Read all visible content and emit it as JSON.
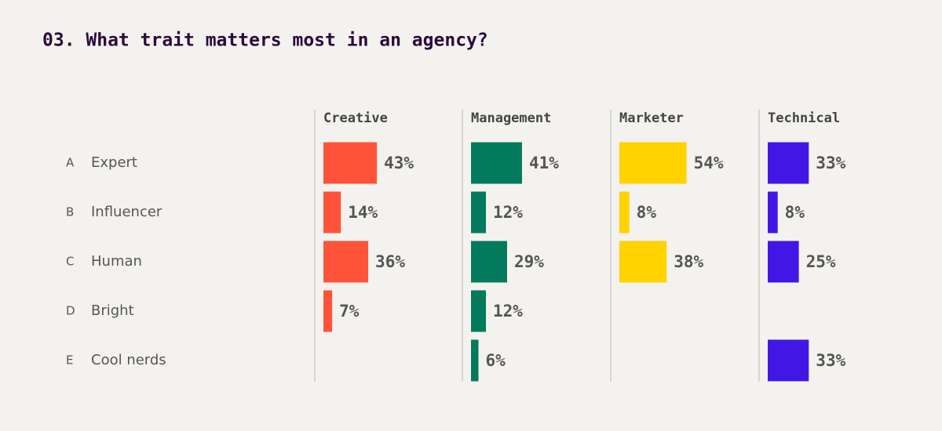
{
  "chart_data": {
    "type": "bar",
    "orientation": "horizontal",
    "title": "03. What trait matters most in an agency?",
    "category_letters": [
      "A",
      "B",
      "C",
      "D",
      "E"
    ],
    "categories": [
      "Expert",
      "Influencer",
      "Human",
      "Bright",
      "Cool nerds"
    ],
    "series": [
      {
        "name": "Creative",
        "color": "#fe5339",
        "values": [
          43,
          14,
          36,
          7,
          null
        ],
        "value_labels": [
          "43%",
          "14%",
          "36%",
          "7%",
          null
        ]
      },
      {
        "name": "Management",
        "color": "#047a5c",
        "values": [
          41,
          12,
          29,
          12,
          6
        ],
        "value_labels": [
          "41%",
          "12%",
          "29%",
          "12%",
          "6%"
        ]
      },
      {
        "name": "Marketer",
        "color": "#ffd200",
        "values": [
          54,
          8,
          38,
          null,
          null
        ],
        "value_labels": [
          "54%",
          "8%",
          "38%",
          null,
          null
        ]
      },
      {
        "name": "Technical",
        "color": "#4217e6",
        "values": [
          33,
          8,
          25,
          null,
          33
        ],
        "value_labels": [
          "33%",
          "8%",
          "25%",
          null,
          "33%"
        ]
      }
    ]
  }
}
